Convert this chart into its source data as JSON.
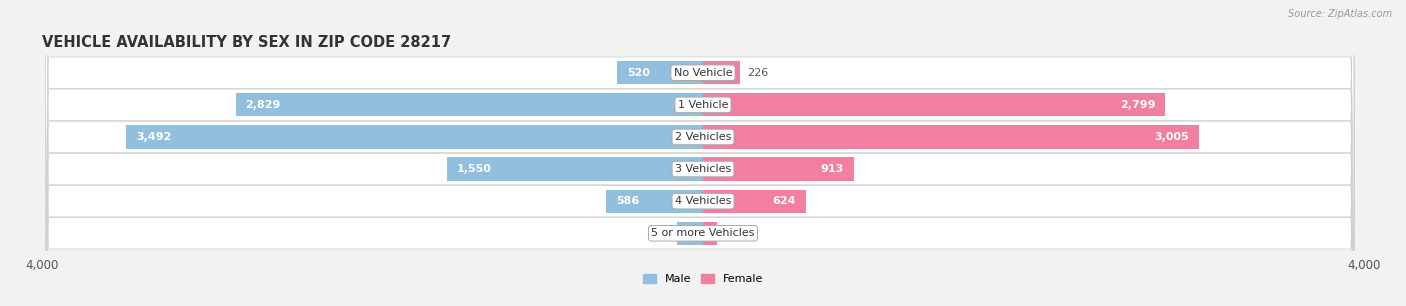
{
  "title": "VEHICLE AVAILABILITY BY SEX IN ZIP CODE 28217",
  "source": "Source: ZipAtlas.com",
  "categories": [
    "No Vehicle",
    "1 Vehicle",
    "2 Vehicles",
    "3 Vehicles",
    "4 Vehicles",
    "5 or more Vehicles"
  ],
  "male_values": [
    520,
    2829,
    3492,
    1550,
    586,
    159
  ],
  "female_values": [
    226,
    2799,
    3005,
    913,
    624,
    85
  ],
  "male_color": "#92bfdd",
  "female_color": "#f07fa0",
  "male_label": "Male",
  "female_label": "Female",
  "xlim": 4000,
  "bar_height": 0.72,
  "fig_bg": "#f2f2f2",
  "row_bg": "#e8e8e8",
  "title_fontsize": 10.5,
  "label_fontsize": 8,
  "tick_fontsize": 8.5,
  "value_fontsize": 8,
  "small_threshold": 400
}
